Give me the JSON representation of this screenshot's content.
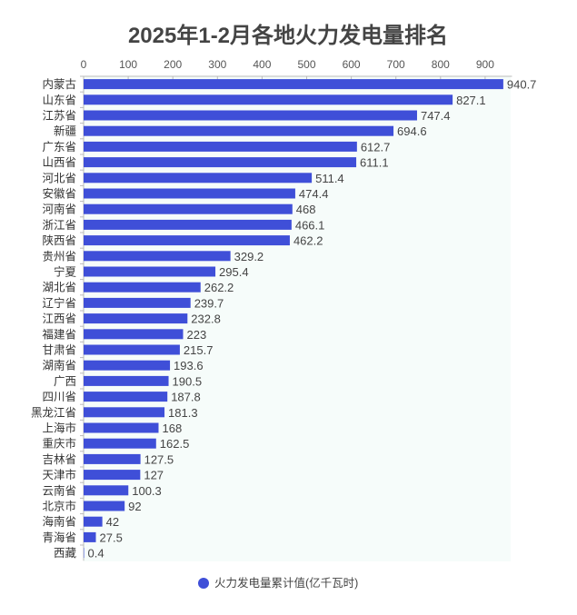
{
  "chart_data": {
    "type": "bar",
    "orientation": "horizontal",
    "title": "2025年1-2月各地火力发电量排名",
    "xlim": [
      0,
      950
    ],
    "x_ticks": [
      0,
      100,
      200,
      300,
      400,
      500,
      600,
      700,
      800,
      900
    ],
    "x_axis_position": "top",
    "grid": false,
    "legend_position": "bottom",
    "categories": [
      "内蒙古",
      "山东省",
      "江苏省",
      "新疆",
      "广东省",
      "山西省",
      "河北省",
      "安徽省",
      "河南省",
      "浙江省",
      "陕西省",
      "贵州省",
      "宁夏",
      "湖北省",
      "辽宁省",
      "江西省",
      "福建省",
      "甘肃省",
      "湖南省",
      "广西",
      "四川省",
      "黑龙江省",
      "上海市",
      "重庆市",
      "吉林省",
      "天津市",
      "云南省",
      "北京市",
      "海南省",
      "青海省",
      "西藏"
    ],
    "series": [
      {
        "name": "火力发电量累计值(亿千瓦时)",
        "color": "#3f4fd8",
        "values": [
          940.7,
          827.1,
          747.4,
          694.6,
          612.7,
          611.1,
          511.4,
          474.4,
          468,
          466.1,
          462.2,
          329.2,
          295.4,
          262.2,
          239.7,
          232.8,
          223,
          215.7,
          193.6,
          190.5,
          187.8,
          181.3,
          168,
          162.5,
          127.5,
          127,
          100.3,
          92,
          42,
          27.5,
          0.4
        ]
      }
    ]
  }
}
